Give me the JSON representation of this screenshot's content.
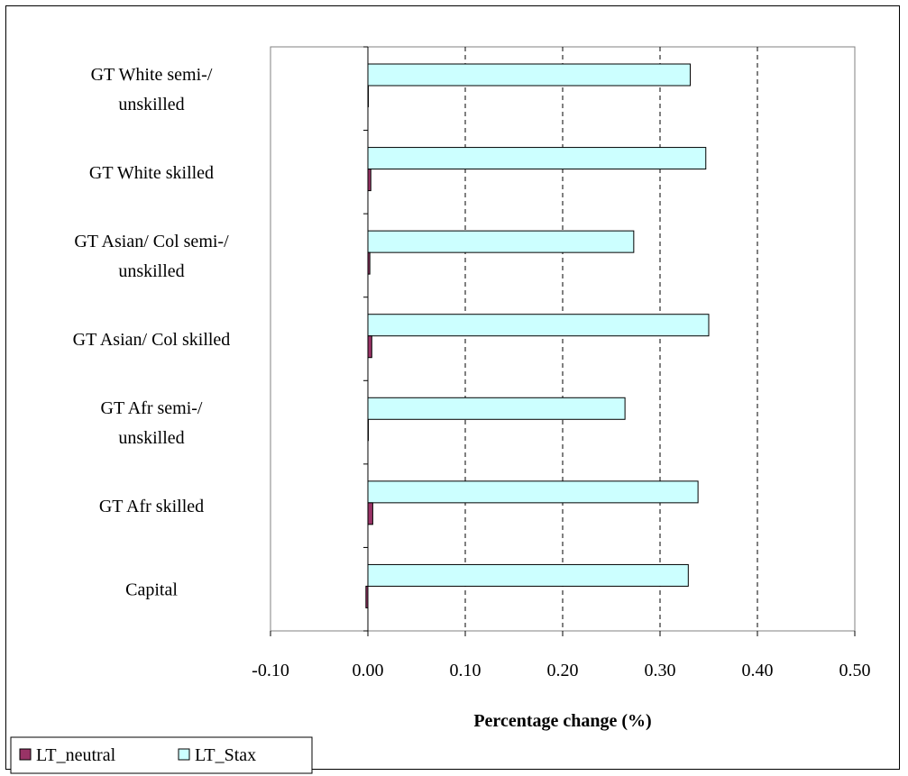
{
  "chart_data": {
    "type": "bar",
    "orientation": "horizontal",
    "categories": [
      "Capital",
      "GT Afr skilled",
      "GT Afr semi-/ unskilled",
      "GT Asian/ Col skilled",
      "GT Asian/ Col semi-/ unskilled",
      "GT White skilled",
      "GT White semi-/ unskilled"
    ],
    "category_lines": [
      [
        "Capital"
      ],
      [
        "GT Afr skilled"
      ],
      [
        "GT Afr semi-/",
        "unskilled"
      ],
      [
        "GT Asian/ Col skilled"
      ],
      [
        "GT Asian/ Col semi-/",
        "unskilled"
      ],
      [
        "GT White skilled"
      ],
      [
        "GT White semi-/",
        "unskilled"
      ]
    ],
    "series": [
      {
        "name": "LT_neutral",
        "color": "#993366",
        "values": [
          -0.002,
          0.005,
          0.0,
          0.004,
          0.002,
          0.003,
          0.0
        ]
      },
      {
        "name": "LT_Stax",
        "color": "#ccffff",
        "values": [
          0.329,
          0.339,
          0.264,
          0.35,
          0.273,
          0.347,
          0.331
        ]
      }
    ],
    "xlim": [
      -0.1,
      0.5
    ],
    "x_ticks": [
      -0.1,
      0.0,
      0.1,
      0.2,
      0.3,
      0.4,
      0.5
    ],
    "x_tick_labels": [
      "-0.10",
      "0.00",
      "0.10",
      "0.20",
      "0.30",
      "0.40",
      "0.50"
    ],
    "xlabel": "Percentage change (%)",
    "ylabel": "",
    "title": "",
    "grid": "vertical dashed",
    "legend": "bottom-left"
  }
}
